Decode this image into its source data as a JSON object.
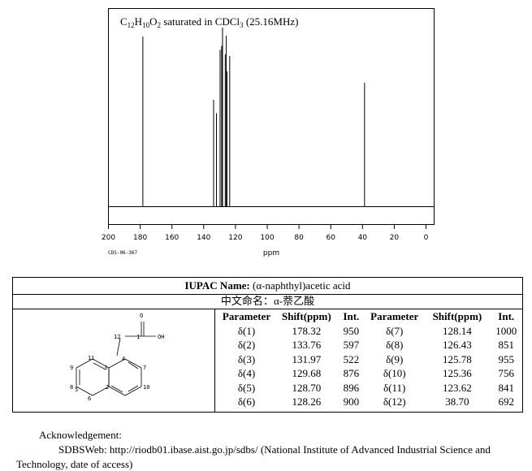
{
  "chart_data": {
    "type": "line",
    "title": "C12H10O2 saturated in CDCl3 (25.16MHz)",
    "title_parts": {
      "formula_pre": "C",
      "c_sub": "12",
      "h": "H",
      "h_sub": "10",
      "o": "O",
      "o_sub": "2",
      "rest": " saturated in CDCl",
      "cl_sub": "3",
      "tail": " (25.16MHz)"
    },
    "xlabel": "ppm",
    "xlim": [
      200,
      0
    ],
    "x_ticks": [
      200,
      180,
      160,
      140,
      120,
      100,
      80,
      60,
      40,
      20,
      0
    ],
    "code": "CDS-06-367",
    "peaks": [
      {
        "shift": 178.32,
        "int": 950
      },
      {
        "shift": 133.76,
        "int": 597
      },
      {
        "shift": 131.97,
        "int": 522
      },
      {
        "shift": 129.68,
        "int": 876
      },
      {
        "shift": 128.7,
        "int": 896
      },
      {
        "shift": 128.26,
        "int": 900
      },
      {
        "shift": 128.14,
        "int": 1000
      },
      {
        "shift": 126.43,
        "int": 851
      },
      {
        "shift": 125.78,
        "int": 955
      },
      {
        "shift": 125.36,
        "int": 756
      },
      {
        "shift": 123.62,
        "int": 841
      },
      {
        "shift": 38.7,
        "int": 692
      }
    ]
  },
  "info": {
    "iupac_label": "IUPAC Name:",
    "iupac_value": " (α-naphthyl)acetic acid",
    "cn_label": "中文命名：",
    "cn_value": "α-萘乙酸",
    "headers": [
      "Parameter",
      "Shift(ppm)",
      "Int.",
      "Parameter",
      "Shift(ppm)",
      "Int."
    ],
    "rows": [
      [
        "δ(1)",
        "178.32",
        "950",
        "δ(7)",
        "128.14",
        "1000"
      ],
      [
        "δ(2)",
        "133.76",
        "597",
        "δ(8)",
        "126.43",
        "851"
      ],
      [
        "δ(3)",
        "131.97",
        "522",
        "δ(9)",
        "125.78",
        "955"
      ],
      [
        "δ(4)",
        "129.68",
        "876",
        "δ(10)",
        "125.36",
        "756"
      ],
      [
        "δ(5)",
        "128.70",
        "896",
        "δ(11)",
        "123.62",
        "841"
      ],
      [
        "δ(6)",
        "128.26",
        "900",
        "δ(12)",
        "38.70",
        "692"
      ]
    ]
  },
  "structure": {
    "labels": {
      "oxygen": "O",
      "hydroxyl": "OH",
      "atoms": [
        "12",
        "1",
        "11",
        "4",
        "9",
        "3",
        "7",
        "8",
        "10",
        "5",
        "2",
        "6"
      ]
    }
  },
  "footer": {
    "ack": "Acknowledgement:",
    "sdbs": "SDBSWeb: http://riodb01.ibase.aist.go.jp/sdbs/ (National Institute of Advanced Industrial Science and",
    "sdbs2": "Technology, date of access)"
  }
}
